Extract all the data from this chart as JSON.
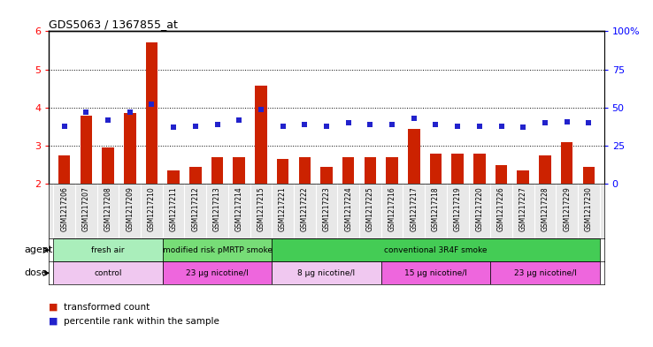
{
  "title": "GDS5063 / 1367855_at",
  "samples": [
    "GSM1217206",
    "GSM1217207",
    "GSM1217208",
    "GSM1217209",
    "GSM1217210",
    "GSM1217211",
    "GSM1217212",
    "GSM1217213",
    "GSM1217214",
    "GSM1217215",
    "GSM1217221",
    "GSM1217222",
    "GSM1217223",
    "GSM1217224",
    "GSM1217225",
    "GSM1217216",
    "GSM1217217",
    "GSM1217218",
    "GSM1217219",
    "GSM1217220",
    "GSM1217226",
    "GSM1217227",
    "GSM1217228",
    "GSM1217229",
    "GSM1217230"
  ],
  "bar_values": [
    2.75,
    3.8,
    2.95,
    3.85,
    5.7,
    2.35,
    2.45,
    2.7,
    2.7,
    4.58,
    2.65,
    2.7,
    2.45,
    2.7,
    2.7,
    2.7,
    3.45,
    2.8,
    2.8,
    2.8,
    2.5,
    2.35,
    2.75,
    3.1,
    2.45
  ],
  "percentile_values": [
    38,
    47,
    42,
    47,
    52,
    37,
    38,
    39,
    42,
    49,
    38,
    39,
    38,
    40,
    39,
    39,
    43,
    39,
    38,
    38,
    38,
    37,
    40,
    41,
    40
  ],
  "bar_color": "#cc2200",
  "dot_color": "#2222cc",
  "ylim": [
    2,
    6
  ],
  "yticks": [
    2,
    3,
    4,
    5,
    6
  ],
  "right_ylim": [
    0,
    100
  ],
  "right_yticks": [
    0,
    25,
    50,
    75,
    100
  ],
  "right_yticklabels": [
    "0",
    "25",
    "50",
    "75",
    "100%"
  ],
  "agent_groups": [
    {
      "label": "fresh air",
      "start": 0,
      "end": 5,
      "color": "#aaeebb"
    },
    {
      "label": "modified risk pMRTP smoke",
      "start": 5,
      "end": 10,
      "color": "#77dd77"
    },
    {
      "label": "conventional 3R4F smoke",
      "start": 10,
      "end": 25,
      "color": "#44cc55"
    }
  ],
  "dose_groups": [
    {
      "label": "control",
      "start": 0,
      "end": 5,
      "color": "#f0c8f0"
    },
    {
      "label": "23 μg nicotine/l",
      "start": 5,
      "end": 10,
      "color": "#ee66dd"
    },
    {
      "label": "8 μg nicotine/l",
      "start": 10,
      "end": 15,
      "color": "#f0c8f0"
    },
    {
      "label": "15 μg nicotine/l",
      "start": 15,
      "end": 20,
      "color": "#ee66dd"
    },
    {
      "label": "23 μg nicotine/l",
      "start": 20,
      "end": 25,
      "color": "#ee66dd"
    }
  ],
  "legend_bar_label": "transformed count",
  "legend_dot_label": "percentile rank within the sample",
  "agent_label": "agent",
  "dose_label": "dose",
  "bg_color": "#e8e8e8"
}
